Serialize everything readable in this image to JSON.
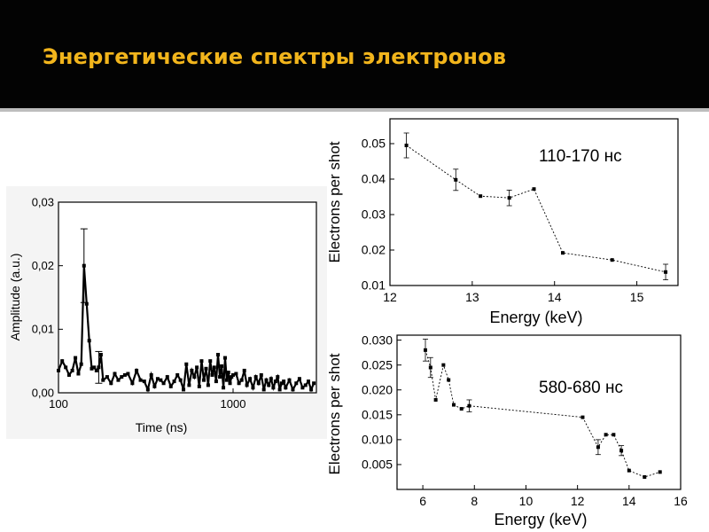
{
  "slide": {
    "title": "Энергетические спектры электронов",
    "colors": {
      "header_bg": "#030303",
      "title": "#f2b51c",
      "divider": "#bdbdbd"
    }
  },
  "chart_data": [
    {
      "type": "line",
      "xlabel": "Time (ns)",
      "ylabel": "Amplitude (a.u.)",
      "xscale": "log",
      "xlim": [
        100,
        3000
      ],
      "ylim": [
        0,
        0.03
      ],
      "yticks": [
        "0,00",
        "0,01",
        "0,02",
        "0,03"
      ],
      "xticks": [
        "100",
        "1000"
      ],
      "grid": false,
      "series": [
        {
          "x": [
            100,
            105,
            110,
            115,
            120,
            125,
            130,
            135,
            140,
            145,
            150,
            155,
            160,
            165,
            170,
            175,
            180,
            190,
            200,
            210,
            220,
            230,
            240,
            250,
            265,
            280,
            295,
            310,
            325,
            340,
            355,
            370,
            385,
            400,
            420,
            440,
            460,
            480,
            500,
            520,
            540,
            560,
            580,
            600,
            620,
            640,
            660,
            680,
            700,
            720,
            740,
            760,
            780,
            800,
            820,
            840,
            860,
            880,
            900,
            920,
            940,
            960,
            980,
            1000,
            1040,
            1080,
            1120,
            1160,
            1200,
            1250,
            1300,
            1350,
            1400,
            1450,
            1500,
            1550,
            1600,
            1650,
            1700,
            1750,
            1800,
            1850,
            1900,
            1950,
            2000,
            2100,
            2200,
            2300,
            2400,
            2500,
            2600,
            2700,
            2800,
            2900
          ],
          "y": [
            0.0035,
            0.005,
            0.004,
            0.0028,
            0.0035,
            0.0055,
            0.003,
            0.0045,
            0.02,
            0.014,
            0.0082,
            0.0038,
            0.004,
            0.0035,
            0.004,
            0.006,
            0.002,
            0.0025,
            0.0015,
            0.003,
            0.002,
            0.0025,
            0.0028,
            0.003,
            0.0015,
            0.0035,
            0.002,
            0.0018,
            0.0005,
            0.0028,
            0.001,
            0.0022,
            0.002,
            0.0015,
            0.0025,
            0.001,
            0.0018,
            0.0028,
            0.002,
            0.0005,
            0.0045,
            0.0012,
            0.0035,
            0.0025,
            0.004,
            0.001,
            0.005,
            0.002,
            0.0038,
            0.0012,
            0.005,
            0.0028,
            0.004,
            0.0018,
            0.006,
            0.0025,
            0.0042,
            0.0008,
            0.0055,
            0.002,
            0.0032,
            0.0015,
            0.0025,
            0.0028,
            0.003,
            0.0015,
            0.002,
            0.0035,
            0.0012,
            0.0022,
            0.0008,
            0.0025,
            0.0015,
            0.0028,
            0.0005,
            0.002,
            0.0012,
            0.0022,
            0.0008,
            0.0018,
            0.0025,
            0.0005,
            0.0015,
            0.0018,
            0.0008,
            0.002,
            0.0005,
            0.0015,
            0.0022,
            0.0008,
            0.0012,
            0.0018,
            0.0005,
            0.0015
          ],
          "errors": [
            {
              "x": 140,
              "y": 0.02,
              "err": 0.0058
            },
            {
              "x": 170,
              "y": 0.004,
              "err": 0.0025
            }
          ]
        }
      ]
    },
    {
      "type": "scatter",
      "annotation": "110-170 нс",
      "xlabel": "Energy (keV)",
      "ylabel": "Electrons per shot",
      "xlim": [
        12,
        15.5
      ],
      "ylim": [
        0.01,
        0.057
      ],
      "xticks": [
        "12",
        "13",
        "14",
        "15"
      ],
      "yticks": [
        "0.01",
        "0.02",
        "0.03",
        "0.04",
        "0.05"
      ],
      "grid": false,
      "series": [
        {
          "x": [
            12.2,
            12.8,
            13.1,
            13.45,
            13.75,
            14.1,
            14.7,
            15.35
          ],
          "y": [
            0.0495,
            0.0398,
            0.0352,
            0.0347,
            0.0372,
            0.0192,
            0.0172,
            0.0138
          ],
          "err": [
            0.0035,
            0.003,
            0,
            0.0022,
            0,
            0,
            0,
            0.0022
          ]
        }
      ]
    },
    {
      "type": "scatter",
      "annotation": "580-680 нс",
      "xlabel": "Energy (keV)",
      "ylabel": "Electrons per shot",
      "xlim": [
        5,
        16
      ],
      "ylim": [
        0,
        0.031
      ],
      "xticks": [
        "6",
        "8",
        "10",
        "12",
        "14",
        "16"
      ],
      "yticks": [
        "0.005",
        "0.010",
        "0.015",
        "0.020",
        "0.025",
        "0.030"
      ],
      "grid": false,
      "series": [
        {
          "x": [
            6.1,
            6.3,
            6.5,
            6.8,
            7.0,
            7.2,
            7.5,
            7.8,
            12.2,
            12.8,
            13.1,
            13.4,
            13.7,
            14.0,
            14.6,
            15.2
          ],
          "y": [
            0.028,
            0.0245,
            0.018,
            0.025,
            0.022,
            0.017,
            0.0162,
            0.0168,
            0.0145,
            0.0085,
            0.011,
            0.011,
            0.0078,
            0.0038,
            0.0025,
            0.0035
          ],
          "err": [
            0.0022,
            0.002,
            0,
            0,
            0,
            0,
            0,
            0.0012,
            0,
            0.0015,
            0,
            0,
            0.001,
            0,
            0,
            0
          ]
        }
      ]
    }
  ]
}
